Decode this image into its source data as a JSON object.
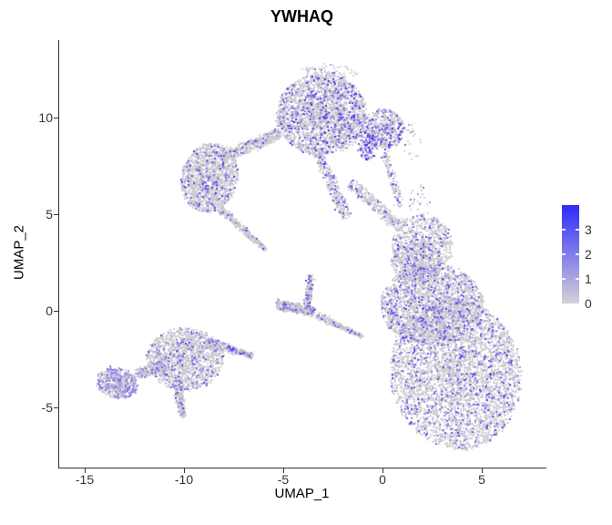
{
  "title": "YWHAQ",
  "chart_data": {
    "type": "scatter",
    "title": "YWHAQ",
    "xlabel": "UMAP_1",
    "ylabel": "UMAP_2",
    "xlim": [
      -16.3,
      8.3
    ],
    "ylim": [
      -8.2,
      14.2
    ],
    "x_ticks": [
      -15,
      -10,
      -5,
      0,
      5
    ],
    "y_ticks": [
      10,
      5,
      0,
      -5
    ],
    "x_tick_labels": [
      "-15",
      "-10",
      "-5",
      "0",
      "5"
    ],
    "y_tick_labels": [
      "10",
      "5",
      "0",
      "-5"
    ],
    "grid": false,
    "legend": {
      "position": "right",
      "tick_labels": [
        "3",
        "2",
        "1",
        "0"
      ],
      "range": [
        0,
        4
      ],
      "low_color": "#d3d2d6",
      "high_color": "#2d2bfb"
    },
    "point_colors": {
      "background": "#c9c7ce",
      "expression_low": "#c3bde4",
      "expression_high": "#3417e8"
    },
    "clusters": [
      {
        "name": "top-main",
        "shape": "blob",
        "cx": -3.05,
        "cy": 10.15,
        "rx": 2.3,
        "ry": 2.1,
        "rot": 0,
        "n": 2600,
        "expr_frac": 0.17,
        "expr_intensity": 0.9
      },
      {
        "name": "top-fringe",
        "shape": "blob",
        "cx": -2.7,
        "cy": 12.35,
        "rx": 1.4,
        "ry": 0.4,
        "rot": 0,
        "n": 90,
        "expr_frac": 0.12,
        "expr_intensity": 0.8
      },
      {
        "name": "top-right-knob",
        "shape": "blob",
        "cx": 0.15,
        "cy": 9.4,
        "rx": 0.95,
        "ry": 1.05,
        "rot": 0,
        "n": 520,
        "expr_frac": 0.28,
        "expr_intensity": 0.9
      },
      {
        "name": "knob-bridge",
        "shape": "blob",
        "cx": -0.75,
        "cy": 8.6,
        "rx": 0.5,
        "ry": 0.8,
        "rot": 0,
        "n": 170,
        "expr_frac": 0.5,
        "expr_intensity": 1.0
      },
      {
        "name": "neck",
        "shape": "blob",
        "cx": 2.0,
        "cy": 3.4,
        "rx": 1.5,
        "ry": 1.6,
        "rot": 0,
        "n": 800,
        "expr_frac": 0.13,
        "expr_intensity": 0.85
      },
      {
        "name": "midleft-main",
        "shape": "blob",
        "cx": -8.7,
        "cy": 6.9,
        "rx": 1.4,
        "ry": 1.8,
        "rot": -15,
        "n": 1500,
        "expr_frac": 0.12,
        "expr_intensity": 0.85
      },
      {
        "name": "right-lower",
        "shape": "blob",
        "cx": 3.7,
        "cy": -3.3,
        "rx": 3.3,
        "ry": 3.9,
        "rot": 8,
        "n": 4300,
        "expr_frac": 0.16,
        "expr_intensity": 0.8
      },
      {
        "name": "right-upper",
        "shape": "blob",
        "cx": 2.5,
        "cy": 0.3,
        "rx": 2.6,
        "ry": 2.1,
        "rot": 0,
        "n": 2300,
        "expr_frac": 0.16,
        "expr_intensity": 0.8
      },
      {
        "name": "right-top",
        "shape": "blob",
        "cx": 1.7,
        "cy": 2.5,
        "rx": 1.3,
        "ry": 1.1,
        "rot": 0,
        "n": 450,
        "expr_frac": 0.14,
        "expr_intensity": 0.8
      },
      {
        "name": "botleft-main",
        "shape": "blob",
        "cx": -9.95,
        "cy": -2.5,
        "rx": 1.95,
        "ry": 1.6,
        "rot": 0,
        "n": 1500,
        "expr_frac": 0.13,
        "expr_intensity": 0.8
      },
      {
        "name": "botleft-knob",
        "shape": "blob",
        "cx": -13.35,
        "cy": -3.75,
        "rx": 1.05,
        "ry": 0.8,
        "rot": -15,
        "n": 620,
        "expr_frac": 0.3,
        "expr_intensity": 0.55
      },
      {
        "name": "specks-midright",
        "shape": "blob",
        "cx": 1.9,
        "cy": 5.6,
        "rx": 0.55,
        "ry": 0.95,
        "rot": 0,
        "n": 28,
        "expr_frac": 0.2,
        "expr_intensity": 0.7
      },
      {
        "name": "specks-knob-right",
        "shape": "blob",
        "cx": 1.5,
        "cy": 8.8,
        "rx": 0.5,
        "ry": 1.0,
        "rot": 0,
        "n": 22,
        "expr_frac": 0.1,
        "expr_intensity": 0.7
      },
      {
        "name": "stream-a",
        "shape": "band",
        "x1": -3.3,
        "y1": 8.3,
        "x2": -1.8,
        "y2": 4.8,
        "w": 0.5,
        "taper": false,
        "n": 320,
        "expr_frac": 0.16,
        "expr_intensity": 0.9
      },
      {
        "name": "stream-b",
        "shape": "band",
        "x1": -1.6,
        "y1": 6.6,
        "x2": 0.8,
        "y2": 4.4,
        "w": 0.55,
        "taper": false,
        "n": 300,
        "expr_frac": 0.12,
        "expr_intensity": 0.85
      },
      {
        "name": "arm-bridge",
        "shape": "band",
        "x1": -5.2,
        "y1": 9.2,
        "x2": -8.1,
        "y2": 7.9,
        "w": 0.55,
        "taper": false,
        "n": 480,
        "expr_frac": 0.1,
        "expr_intensity": 0.8
      },
      {
        "name": "midleft-tail",
        "shape": "band",
        "x1": -8.2,
        "y1": 5.3,
        "x2": -5.9,
        "y2": 3.2,
        "w": 0.42,
        "taper": true,
        "n": 300,
        "expr_frac": 0.1,
        "expr_intensity": 0.8
      },
      {
        "name": "mid-bar",
        "shape": "band",
        "x1": -5.35,
        "y1": 0.35,
        "x2": -3.45,
        "y2": -0.05,
        "w": 0.45,
        "taper": false,
        "n": 400,
        "expr_frac": 0.12,
        "expr_intensity": 0.85
      },
      {
        "name": "mid-spike",
        "shape": "band",
        "x1": -3.8,
        "y1": 0.3,
        "x2": -3.6,
        "y2": 1.85,
        "w": 0.32,
        "taper": false,
        "n": 160,
        "expr_frac": 0.12,
        "expr_intensity": 0.85
      },
      {
        "name": "mid-tail",
        "shape": "band",
        "x1": -3.3,
        "y1": -0.25,
        "x2": -1.0,
        "y2": -1.35,
        "w": 0.34,
        "taper": true,
        "n": 240,
        "expr_frac": 0.1,
        "expr_intensity": 0.8
      },
      {
        "name": "botleft-tip",
        "shape": "band",
        "x1": -10.35,
        "y1": -3.6,
        "x2": -10.05,
        "y2": -5.5,
        "w": 0.55,
        "taper": true,
        "n": 260,
        "expr_frac": 0.12,
        "expr_intensity": 0.8
      },
      {
        "name": "botleft-arm",
        "shape": "band",
        "x1": -12.4,
        "y1": -3.3,
        "x2": -11.0,
        "y2": -2.85,
        "w": 0.5,
        "taper": false,
        "n": 220,
        "expr_frac": 0.14,
        "expr_intensity": 0.6
      },
      {
        "name": "botleft-spike",
        "shape": "band",
        "x1": -8.9,
        "y1": -1.6,
        "x2": -6.55,
        "y2": -2.35,
        "w": 0.55,
        "taper": true,
        "n": 330,
        "expr_frac": 0.12,
        "expr_intensity": 0.8
      },
      {
        "name": "knob-trail",
        "shape": "band",
        "x1": 0.1,
        "y1": 8.2,
        "x2": 0.9,
        "y2": 5.4,
        "w": 0.35,
        "taper": false,
        "n": 130,
        "expr_frac": 0.15,
        "expr_intensity": 0.85
      }
    ]
  }
}
